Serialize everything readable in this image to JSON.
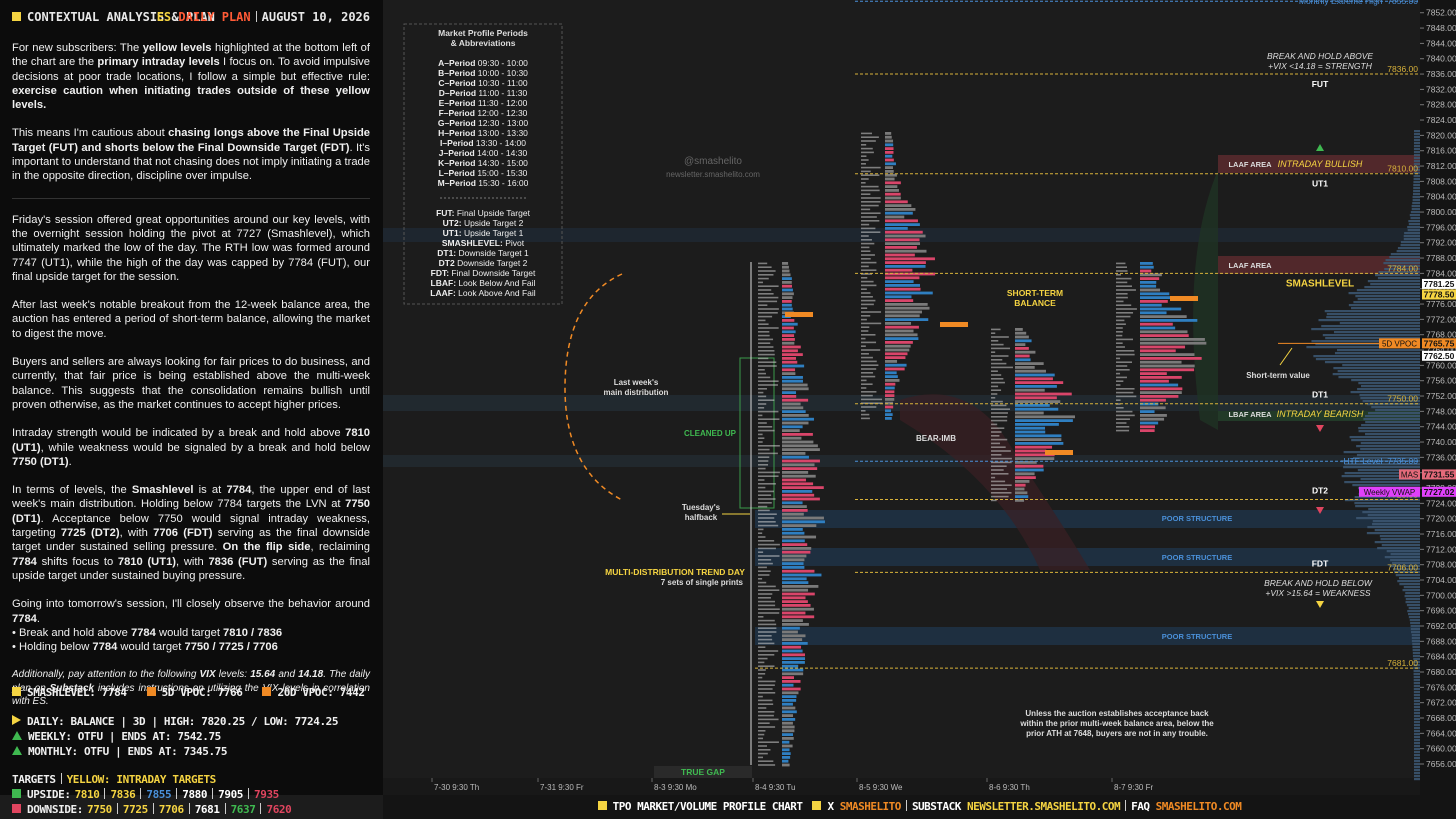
{
  "left_panel": {
    "header": {
      "title": "CONTEXTUAL ANALYSIS & PLAN",
      "es": "ES",
      "plan": "DAILY PLAN",
      "date": "AUGUST 10, 2026"
    },
    "paragraphs": [
      [
        "For new subscribers: The ",
        "yellow levels",
        " highlighted at the bottom left of the chart are the ",
        "primary intraday levels",
        " I focus on. To avoid impulsive decisions at poor trade locations, I follow a simple but effective rule: ",
        "exercise caution when initiating trades outside of these yellow levels."
      ],
      [
        "This means I'm cautious about ",
        "chasing longs above the Final Upside Target (FUT) and shorts below the Final Downside Target (FDT)",
        ". It's important to understand that not chasing does not imply initiating a trade in the opposite direction, discipline over impulse."
      ],
      [
        "Friday's session offered great opportunities around our key levels, with the overnight session holding the pivot at 7727 (Smashlevel), which ultimately marked the low of the day. The RTH low was formed around 7747 (UT1), while the high of the day was capped by 7784 (FUT), our final upside target for the session."
      ],
      [
        "After last week's notable breakout from the 12-week balance area, the auction has entered a period of short-term balance, allowing the market to digest the move."
      ],
      [
        "Buyers and sellers are always looking for fair prices to do business, and currently, that fair price is being established above the multi-week balance. This suggests that the consolidation remains bullish until proven otherwise, as the market continues to accept higher prices."
      ],
      [
        "Intraday strength would be indicated by a break and hold above ",
        "7810 (UT1)",
        ", while weakness would be signaled by a break and hold below ",
        "7750 (DT1)",
        "."
      ],
      [
        "In terms of levels, the ",
        "Smashlevel",
        " is at ",
        "7784",
        ", the upper end of last week's main distribution. Holding below 7784 targets the LVN at ",
        "7750 (DT1)",
        ". Acceptance below 7750 would signal intraday weakness, targeting ",
        "7725 (DT2)",
        ", with ",
        "7706 (FDT)",
        " serving as the final downside target under sustained selling pressure. ",
        "On the flip side",
        ", reclaiming ",
        "7784",
        " shifts focus to ",
        "7810 (UT1)",
        ", with ",
        "7836 (FUT)",
        " serving as the final upside target under sustained buying pressure."
      ],
      [
        "Going into tomorrow's session, I'll closely observe the behavior around ",
        "7784",
        "."
      ]
    ],
    "bullets": [
      [
        "• Break and hold above ",
        "7784",
        " would target ",
        "7810 / 7836"
      ],
      [
        "• Holding below ",
        "7784",
        " would target ",
        "7750 / 7725 / 7706"
      ]
    ],
    "note": [
      "Additionally, pay attention to the following ",
      "VIX",
      " levels: ",
      "15.64",
      " and ",
      "14.18",
      ". The daily plan on ",
      "Substack",
      " includes instructions on utilizing the VIX levels in correlation with ES."
    ],
    "legend": [
      {
        "text": "SMASHLEVEL: 7784",
        "color": "#f5d442"
      },
      {
        "text": "5D VPOC: 7766",
        "color": "#f08a24"
      },
      {
        "text": "20D VPOC: 7442",
        "color": "#f08a24"
      }
    ],
    "status": [
      {
        "text": "DAILY: BALANCE | 3D | HIGH: 7820.25 / LOW: 7724.25",
        "color": "#f5d442",
        "shape": "right"
      },
      {
        "text": "WEEKLY: OTFU | ENDS AT: 7542.75",
        "color": "#3fb950",
        "shape": "up"
      },
      {
        "text": "MONTHLY: OTFU | ENDS AT: 7345.75",
        "color": "#3fb950",
        "shape": "up"
      }
    ],
    "targets": {
      "title": "TARGETS",
      "subtitle": "YELLOW: INTRADAY TARGETS",
      "rows": [
        {
          "label": "UPSIDE:",
          "color": "#3fb950",
          "values": [
            "7810",
            "7836",
            "7855",
            "7880",
            "7905",
            "7935"
          ],
          "colors": [
            "#f5d442",
            "#f5d442",
            "#4a90d9",
            "#ffffff",
            "#ffffff",
            "#e0455f"
          ]
        },
        {
          "label": "DOWNSIDE:",
          "color": "#e0455f",
          "values": [
            "7750",
            "7725",
            "7706",
            "7681",
            "7637",
            "7620"
          ],
          "colors": [
            "#f5d442",
            "#f5d442",
            "#f5d442",
            "#ffffff",
            "#3fb950",
            "#e0455f"
          ]
        }
      ]
    }
  },
  "abbreviations": {
    "title": [
      "Market Profile Periods",
      "& Abbreviations"
    ],
    "periods": [
      [
        "A–Period",
        "09:30 - 10:00"
      ],
      [
        "B–Period",
        "10:00 - 10:30"
      ],
      [
        "C–Period",
        "10:30 - 11:00"
      ],
      [
        "D–Period",
        "11:00 - 11:30"
      ],
      [
        "E–Period",
        "11:30 - 12:00"
      ],
      [
        "F–Period",
        "12:00 - 12:30"
      ],
      [
        "G–Period",
        "12:30 - 13:00"
      ],
      [
        "H–Period",
        "13:00 - 13:30"
      ],
      [
        "I–Period",
        "13:30 - 14:00"
      ],
      [
        "J–Period",
        "14:00 - 14:30"
      ],
      [
        "K–Period",
        "14:30 - 15:00"
      ],
      [
        "L–Period",
        "15:00 - 15:30"
      ],
      [
        "M–Period",
        "15:30 - 16:00"
      ]
    ],
    "definitions": [
      [
        "FUT:",
        "Final Upside Target"
      ],
      [
        "UT2:",
        "Upside Target 2"
      ],
      [
        "UT1:",
        "Upside Target 1"
      ],
      [
        "SMASHLEVEL:",
        "Pivot"
      ],
      [
        "DT1:",
        "Downside Target 1"
      ],
      [
        "DT2",
        "Downside Target 2"
      ],
      [
        "FDT:",
        "Final Downside Target"
      ],
      [
        "LBAF:",
        "Look Below And Fail"
      ],
      [
        "LAAF:",
        "Look Above And Fail"
      ]
    ]
  },
  "chart": {
    "watermark": [
      "@smashelito",
      "newsletter.smashelito.com"
    ],
    "price_axis": [
      "7852.00",
      "7848.00",
      "7844.00",
      "7840.00",
      "7836.00",
      "7832.00",
      "7828.00",
      "7824.00",
      "7820.00",
      "7816.00",
      "7812.00",
      "7808.00",
      "7804.00",
      "7800.00",
      "7796.00",
      "7792.00",
      "7788.00",
      "7784.00",
      "7780.00",
      "7776.00",
      "7772.00",
      "7768.00",
      "7764.00",
      "7760.00",
      "7756.00",
      "7752.00",
      "7748.00",
      "7744.00",
      "7740.00",
      "7736.00",
      "7732.00",
      "7728.00",
      "7724.00",
      "7720.00",
      "7716.00",
      "7712.00",
      "7708.00",
      "7704.00",
      "7700.00",
      "7696.00",
      "7692.00",
      "7688.00",
      "7684.00",
      "7680.00",
      "7676.00",
      "7672.00",
      "7668.00",
      "7664.00",
      "7660.00",
      "7656.00"
    ],
    "time_axis": [
      "7-30  9:30 Th",
      "7-31  9:30 Fr",
      "8-3  9:30 Mo",
      "8-4  9:30 Tu",
      "8-5  9:30 We",
      "8-6  9:30 Th",
      "8-7  9:30 Fr"
    ],
    "levels": [
      {
        "label": "FUT",
        "price": "7836.00"
      },
      {
        "label": "UT1",
        "price": "7810.00"
      },
      {
        "label": "SMASHLEVEL",
        "price": "7784.00"
      },
      {
        "label": "DT1",
        "price": "7750.00"
      },
      {
        "label": "DT2",
        "price": "7725.00"
      },
      {
        "label": "FDT",
        "price": "7706.00"
      },
      {
        "price": "7681.00"
      }
    ],
    "line_tags": [
      {
        "label": "Monthly Extreme High",
        "price": "7855.00",
        "color": "#4a90d9"
      },
      {
        "label": "HTF Level",
        "price": "7735.00",
        "color": "#4a90d9"
      }
    ],
    "box_tags": [
      {
        "price": "7781.25",
        "color": "#ffffff"
      },
      {
        "price": "7778.50",
        "color": "#f5d442"
      },
      {
        "label": "5D VPOC",
        "price": "7765.75",
        "color": "#f08a24"
      },
      {
        "price": "7762.50",
        "color": "#ffffff"
      },
      {
        "label": "MAS",
        "price": "7731.55",
        "color": "#e46a7a"
      },
      {
        "label": "Weekly VWAP",
        "price": "7727.02",
        "color": "#e040fb"
      }
    ],
    "annotations": {
      "last_week": [
        "Last week's",
        "main distribution"
      ],
      "cleaned_up": "CLEANED UP",
      "halfback": [
        "Tuesday's",
        "halfback"
      ],
      "trend_day": "MULTI-DISTRIBUTION TREND DAY",
      "single_prints": "7 sets of single prints",
      "true_gap": "TRUE GAP",
      "bear_imb": "BEAR-IMB",
      "short_term_balance": [
        "SHORT-TERM",
        "BALANCE"
      ],
      "poor_structure": [
        "POOR STRUCTURE",
        "POOR STRUCTURE",
        "POOR STRUCTURE"
      ],
      "short_term_value": "Short-term value",
      "laaf": [
        "LAAF AREA",
        "LAAF AREA"
      ],
      "lbaf": "LBAF AREA",
      "intraday_bullish": "INTRADAY BULLISH",
      "intraday_bearish": "INTRADAY BEARISH",
      "break_above": [
        "BREAK AND HOLD ABOVE",
        "+VIX <14.18 = STRENGTH"
      ],
      "break_below": [
        "BREAK AND HOLD BELOW",
        "+VIX >15.64 = WEAKNESS"
      ],
      "footnote": [
        "Unless the auction establishes acceptance back",
        "within the prior multi-week balance area, below the",
        "prior ATH at 7648, buyers are not in any trouble."
      ]
    }
  },
  "footer": [
    {
      "text": "TPO MARKET/VOLUME PROFILE CHART",
      "color": "#ffffff",
      "square": true
    },
    {
      "text": "X",
      "color": "#ffffff",
      "square": true
    },
    {
      "text": "SMASHELITO",
      "color": "#f08a24",
      "sep": false
    },
    {
      "text": "SUBSTACK",
      "color": "#ffffff"
    },
    {
      "text": "NEWSLETTER.SMASHELITO.COM",
      "color": "#f5d442",
      "sep": false
    },
    {
      "text": "FAQ",
      "color": "#ffffff"
    },
    {
      "text": "SMASHELITO.COM",
      "color": "#f08a24",
      "sep": false
    }
  ]
}
